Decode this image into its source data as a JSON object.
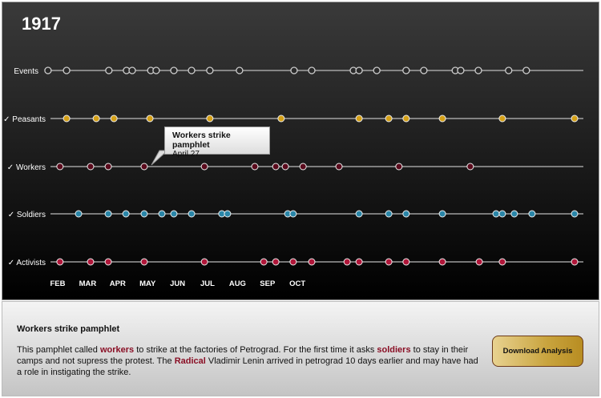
{
  "title": "1917",
  "tooltip": {
    "title": "Workers strike pamphlet",
    "date": "April 27"
  },
  "details": {
    "title": "Workers strike pamphlet",
    "text": [
      {
        "t": "This pamphlet called "
      },
      {
        "t": "workers",
        "hl": true
      },
      {
        "t": " to strike at the factories of Petrograd. For the first time it asks "
      },
      {
        "t": "soldiers",
        "hl": true
      },
      {
        "t": " to stay in their camps and not supress the protest. The "
      },
      {
        "t": "Radical",
        "hl": true
      },
      {
        "t": " Vladimir Lenin arrived in petrograd 10 days earlier and may have had a role in instigating the strike."
      }
    ]
  },
  "download_label": "Download Analysis",
  "chart_data": {
    "type": "scatter",
    "x_unit": "month",
    "x_ticks": [
      {
        "m": 2,
        "label": "FEB"
      },
      {
        "m": 3,
        "label": "MAR"
      },
      {
        "m": 4,
        "label": "APR"
      },
      {
        "m": 5,
        "label": "MAY"
      },
      {
        "m": 6,
        "label": "JUN"
      },
      {
        "m": 7,
        "label": "JUL"
      },
      {
        "m": 8,
        "label": "AUG"
      },
      {
        "m": 9,
        "label": "SEP"
      },
      {
        "m": 10,
        "label": "OCT"
      }
    ],
    "series": [
      {
        "name": "Events",
        "checked": false,
        "color": "#2a2a2a",
        "hollow": true,
        "x": [
          1.73,
          2.35,
          3.76,
          4.35,
          4.54,
          5.16,
          5.34,
          5.93,
          6.52,
          7.13,
          8.12,
          9.94,
          10.53,
          11.92,
          12.11,
          12.7,
          13.68,
          14.27,
          15.32,
          15.5,
          16.09,
          17.1,
          17.69
        ]
      },
      {
        "name": "Peasants",
        "checked": true,
        "color": "#d4a017",
        "x": [
          2.35,
          3.34,
          3.93,
          5.13,
          7.13,
          9.51,
          12.11,
          13.1,
          13.68,
          14.89,
          16.89,
          19.3
        ]
      },
      {
        "name": "Workers",
        "checked": true,
        "color": "#5a0a1c",
        "x": [
          2.13,
          3.15,
          3.74,
          4.94,
          6.95,
          8.63,
          9.33,
          9.65,
          10.24,
          11.44,
          13.44,
          15.82
        ]
      },
      {
        "name": "Soldiers",
        "checked": true,
        "color": "#2a86a8",
        "x": [
          2.75,
          3.74,
          4.33,
          4.94,
          5.53,
          5.93,
          6.52,
          7.53,
          7.72,
          9.73,
          9.91,
          12.11,
          13.1,
          13.68,
          14.89,
          16.68,
          16.89,
          17.29,
          17.88,
          19.3
        ]
      },
      {
        "name": "Activists",
        "checked": true,
        "color": "#b0173a",
        "x": [
          2.13,
          3.15,
          3.74,
          4.94,
          6.95,
          8.93,
          9.33,
          9.91,
          10.53,
          11.71,
          12.11,
          13.1,
          13.68,
          14.89,
          16.12,
          16.89,
          19.3
        ]
      }
    ]
  }
}
